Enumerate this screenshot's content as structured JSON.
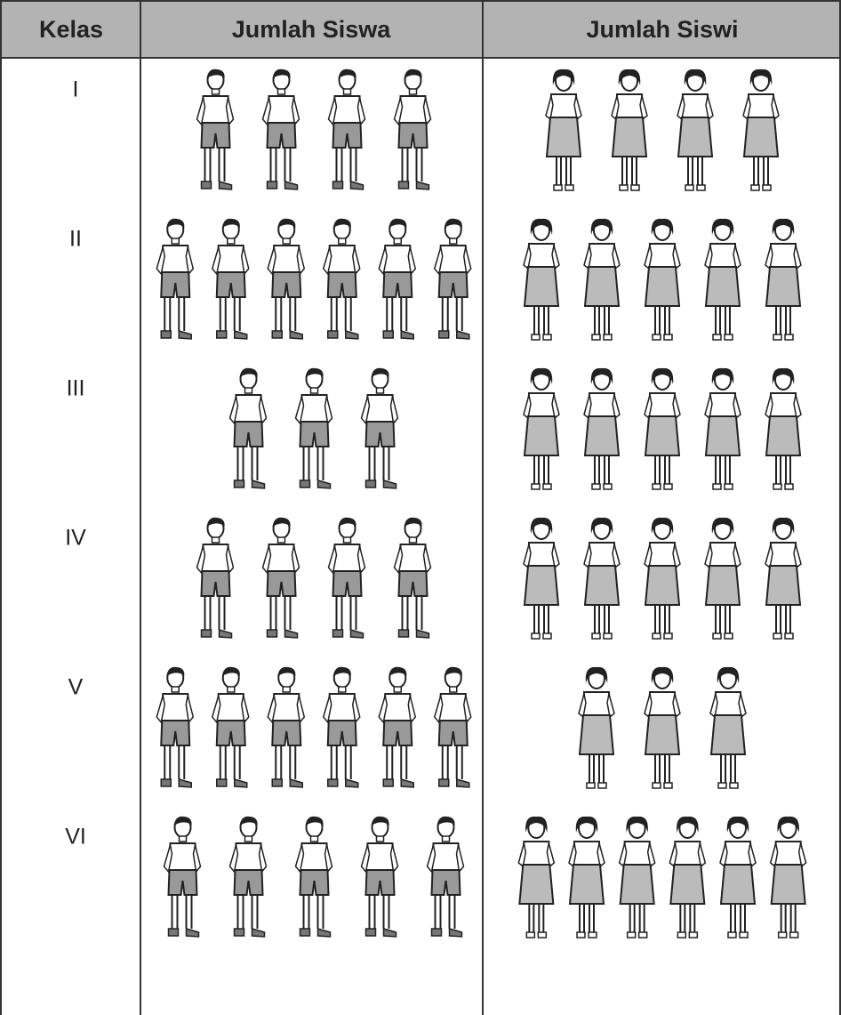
{
  "table": {
    "headers": [
      "Kelas",
      "Jumlah Siswa",
      "Jumlah Siswi"
    ],
    "rows": [
      {
        "kelas": "I",
        "siswa": 4,
        "siswi": 4
      },
      {
        "kelas": "II",
        "siswa": 6,
        "siswi": 5
      },
      {
        "kelas": "III",
        "siswa": 3,
        "siswi": 5
      },
      {
        "kelas": "IV",
        "siswa": 4,
        "siswi": 5
      },
      {
        "kelas": "V",
        "siswa": 6,
        "siswi": 3
      },
      {
        "kelas": "VI",
        "siswa": 5,
        "siswi": 6
      }
    ]
  }
}
